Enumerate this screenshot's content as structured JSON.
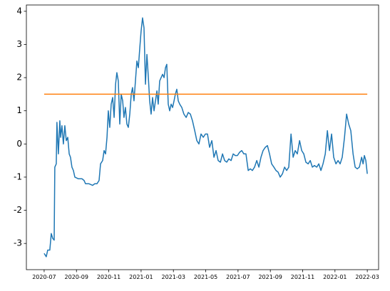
{
  "chart_data": {
    "type": "line",
    "series": [
      {
        "color": "#1f77b4",
        "x": [
          0,
          0.13,
          0.22,
          0.35,
          0.44,
          0.53,
          0.62,
          0.66,
          0.75,
          0.79,
          0.88,
          0.97,
          1.02,
          1.1,
          1.19,
          1.28,
          1.37,
          1.46,
          1.55,
          1.63,
          1.72,
          1.81,
          1.9,
          2.12,
          2.34,
          2.47,
          2.56,
          2.78,
          3.0,
          3.13,
          3.27,
          3.4,
          3.49,
          3.62,
          3.71,
          3.8,
          3.89,
          3.97,
          4.06,
          4.15,
          4.24,
          4.33,
          4.42,
          4.5,
          4.59,
          4.68,
          4.77,
          4.86,
          4.94,
          5.03,
          5.12,
          5.21,
          5.3,
          5.39,
          5.47,
          5.56,
          5.65,
          5.74,
          5.83,
          5.92,
          6.0,
          6.09,
          6.18,
          6.27,
          6.36,
          6.45,
          6.53,
          6.62,
          6.71,
          6.8,
          6.89,
          6.98,
          7.06,
          7.15,
          7.24,
          7.33,
          7.42,
          7.51,
          7.59,
          7.68,
          7.77,
          7.86,
          7.95,
          8.04,
          8.12,
          8.21,
          8.3,
          8.39,
          8.52,
          8.65,
          8.79,
          8.92,
          9.05,
          9.18,
          9.32,
          9.45,
          9.58,
          9.71,
          9.85,
          9.98,
          10.11,
          10.24,
          10.38,
          10.51,
          10.64,
          10.77,
          10.91,
          11.04,
          11.17,
          11.3,
          11.43,
          11.57,
          11.7,
          11.83,
          11.96,
          12.1,
          12.23,
          12.36,
          12.49,
          12.63,
          12.76,
          12.89,
          13.02,
          13.16,
          13.29,
          13.42,
          13.55,
          13.69,
          13.82,
          13.95,
          14.08,
          14.22,
          14.35,
          14.48,
          14.61,
          14.75,
          14.88,
          15.01,
          15.14,
          15.28,
          15.41,
          15.54,
          15.67,
          15.81,
          15.94,
          16.07,
          16.2,
          16.34,
          16.47,
          16.6,
          16.73,
          16.87,
          17.0,
          17.13,
          17.26,
          17.4,
          17.53,
          17.66,
          17.79,
          17.92,
          18.06,
          18.19,
          18.32,
          18.45,
          18.59,
          18.72,
          18.85,
          18.98,
          19.12,
          19.25,
          19.38,
          19.51,
          19.65,
          19.74,
          19.82,
          19.91,
          20.0
        ],
        "values": [
          -3.3,
          -3.4,
          -3.2,
          -3.2,
          -2.7,
          -2.85,
          -2.9,
          -0.7,
          -0.6,
          0.65,
          -0.3,
          0.7,
          0.2,
          0.55,
          0.0,
          0.55,
          0.1,
          0.2,
          -0.3,
          -0.4,
          -0.7,
          -0.8,
          -1.0,
          -1.05,
          -1.05,
          -1.1,
          -1.2,
          -1.2,
          -1.25,
          -1.2,
          -1.2,
          -1.1,
          -0.6,
          -0.5,
          -0.2,
          -0.3,
          0.2,
          1.0,
          0.5,
          1.2,
          1.4,
          0.8,
          1.8,
          2.15,
          1.9,
          0.6,
          1.5,
          1.3,
          0.8,
          1.1,
          0.6,
          0.5,
          0.9,
          1.5,
          1.7,
          1.3,
          1.9,
          2.5,
          2.3,
          2.9,
          3.4,
          3.8,
          3.5,
          1.8,
          2.7,
          2.0,
          1.3,
          0.9,
          1.4,
          1.0,
          1.3,
          1.6,
          1.2,
          1.9,
          2.0,
          2.1,
          2.0,
          2.3,
          2.4,
          1.2,
          1.0,
          1.2,
          1.1,
          1.3,
          1.5,
          1.65,
          1.3,
          1.2,
          1.1,
          0.9,
          0.8,
          0.95,
          0.9,
          0.7,
          0.4,
          0.1,
          0.0,
          0.3,
          0.2,
          0.3,
          0.3,
          -0.1,
          0.1,
          -0.4,
          -0.2,
          -0.5,
          -0.55,
          -0.3,
          -0.5,
          -0.55,
          -0.45,
          -0.5,
          -0.3,
          -0.35,
          -0.35,
          -0.25,
          -0.2,
          -0.3,
          -0.3,
          -0.8,
          -0.75,
          -0.8,
          -0.7,
          -0.5,
          -0.7,
          -0.4,
          -0.2,
          -0.1,
          -0.05,
          -0.3,
          -0.6,
          -0.7,
          -0.8,
          -0.85,
          -1.0,
          -0.9,
          -0.7,
          -0.8,
          -0.7,
          0.3,
          -0.4,
          -0.2,
          -0.3,
          0.1,
          -0.2,
          -0.3,
          -0.55,
          -0.6,
          -0.5,
          -0.7,
          -0.65,
          -0.7,
          -0.6,
          -0.8,
          -0.6,
          -0.3,
          0.4,
          -0.2,
          0.3,
          -0.4,
          -0.6,
          -0.5,
          -0.6,
          -0.4,
          0.2,
          0.9,
          0.6,
          0.4,
          -0.3,
          -0.7,
          -0.75,
          -0.7,
          -0.4,
          -0.6,
          -0.35,
          -0.5,
          -0.9
        ]
      },
      {
        "color": "#ff7f0e",
        "x": [
          0,
          20
        ],
        "values": [
          1.5,
          1.5
        ]
      }
    ],
    "xlim": [
      -1.1,
      20.7
    ],
    "xticks": [
      {
        "value": 0,
        "label": "2020-07"
      },
      {
        "value": 2,
        "label": "2020-09"
      },
      {
        "value": 4,
        "label": "2020-11"
      },
      {
        "value": 6,
        "label": "2021-01"
      },
      {
        "value": 8,
        "label": "2021-03"
      },
      {
        "value": 10,
        "label": "2021-05"
      },
      {
        "value": 12,
        "label": "2021-07"
      },
      {
        "value": 14,
        "label": "2021-09"
      },
      {
        "value": 16,
        "label": "2021-11"
      },
      {
        "value": 18,
        "label": "2022-01"
      },
      {
        "value": 20,
        "label": "2022-03"
      }
    ],
    "ylim": [
      -3.79,
      4.19
    ],
    "yticks": [
      -3,
      -2,
      -1,
      0,
      1,
      2,
      3,
      4
    ]
  }
}
